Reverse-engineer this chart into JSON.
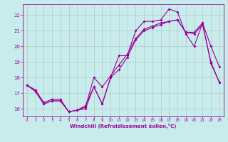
{
  "xlabel": "Windchill (Refroidissement éolien,°C)",
  "bg_color": "#c8ecec",
  "line_color": "#990099",
  "grid_color": "#aaaaaa",
  "xlim": [
    -0.5,
    23.5
  ],
  "ylim": [
    15.5,
    22.7
  ],
  "xticks": [
    0,
    1,
    2,
    3,
    4,
    5,
    6,
    7,
    8,
    9,
    10,
    11,
    12,
    13,
    14,
    15,
    16,
    17,
    18,
    19,
    20,
    21,
    22,
    23
  ],
  "yticks": [
    16,
    17,
    18,
    19,
    20,
    21,
    22
  ],
  "line1_x": [
    0,
    1,
    2,
    3,
    4,
    5,
    6,
    7,
    8,
    9,
    10,
    11,
    12,
    13,
    14,
    15,
    16,
    17,
    18,
    19,
    20,
    21,
    22,
    23
  ],
  "line1_y": [
    17.5,
    17.1,
    16.3,
    16.5,
    16.5,
    15.8,
    15.9,
    16.0,
    17.4,
    16.3,
    18.0,
    19.4,
    19.4,
    21.0,
    21.6,
    21.6,
    21.7,
    22.4,
    22.2,
    20.8,
    20.0,
    21.5,
    20.0,
    18.7
  ],
  "line2_x": [
    0,
    1,
    2,
    3,
    4,
    5,
    6,
    7,
    8,
    9,
    10,
    11,
    12,
    13,
    14,
    15,
    16,
    17,
    18,
    19,
    20,
    21,
    22,
    23
  ],
  "line2_y": [
    17.5,
    17.2,
    16.3,
    16.5,
    16.5,
    15.8,
    15.9,
    16.1,
    18.0,
    17.4,
    18.1,
    18.8,
    19.5,
    20.5,
    21.1,
    21.3,
    21.5,
    21.6,
    21.7,
    20.9,
    20.8,
    21.4,
    19.0,
    17.7
  ],
  "line3_x": [
    0,
    1,
    2,
    3,
    4,
    5,
    6,
    7,
    8,
    9,
    10,
    11,
    12,
    13,
    14,
    15,
    16,
    17,
    18,
    19,
    20,
    21,
    22,
    23
  ],
  "line3_y": [
    17.5,
    17.2,
    16.4,
    16.6,
    16.6,
    15.8,
    15.9,
    16.2,
    17.4,
    16.3,
    18.0,
    18.5,
    19.3,
    20.4,
    21.0,
    21.2,
    21.4,
    21.6,
    21.7,
    20.9,
    20.9,
    21.5,
    18.9,
    17.7
  ]
}
